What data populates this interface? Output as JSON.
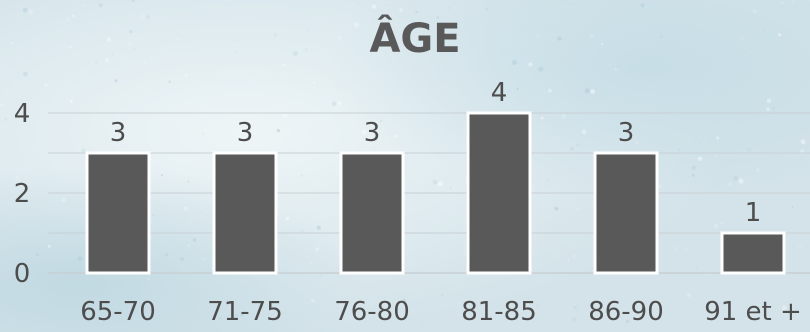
{
  "chart_data": {
    "type": "bar",
    "title": "ÂGE",
    "categories": [
      "65-70",
      "71-75",
      "76-80",
      "81-85",
      "86-90",
      "91 et +"
    ],
    "values": [
      3,
      3,
      3,
      4,
      3,
      1
    ],
    "data_labels": [
      "3",
      "3",
      "3",
      "4",
      "3",
      "1"
    ],
    "y_ticks": [
      "0",
      "2",
      "4"
    ],
    "ylim": [
      0,
      4
    ],
    "grid": true,
    "legend": "none",
    "bar_color": "#595959",
    "bar_border_color": "#ffffff",
    "grid_color": "#c8d0d4",
    "text_color": "#4d4d4d",
    "title_color": "#595959",
    "background_color": "#dce9ee"
  }
}
